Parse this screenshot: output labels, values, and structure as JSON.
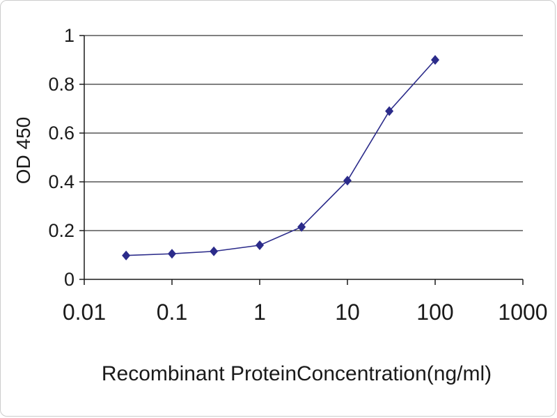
{
  "chart_data": {
    "type": "line",
    "title": "",
    "xlabel": "Recombinant ProteinConcentration(ng/ml)",
    "ylabel": "OD 450",
    "xscale": "log",
    "xlim": [
      0.01,
      1000
    ],
    "ylim": [
      0,
      1
    ],
    "xticks": [
      0.01,
      0.1,
      1,
      10,
      100,
      1000
    ],
    "xtick_labels": [
      "0.01",
      "0.1",
      "1",
      "10",
      "100",
      "1000"
    ],
    "yticks": [
      0,
      0.2,
      0.4,
      0.6,
      0.8,
      1
    ],
    "ytick_labels": [
      "0",
      "0.2",
      "0.4",
      "0.6",
      "0.8",
      "1"
    ],
    "grid": "horizontal",
    "legend": "none",
    "x": [
      0.03,
      0.1,
      0.3,
      1,
      3,
      10,
      30,
      100
    ],
    "series": [
      {
        "name": "OD 450",
        "values": [
          0.098,
          0.105,
          0.115,
          0.14,
          0.215,
          0.405,
          0.69,
          0.9
        ]
      }
    ],
    "line_color": "#2b2b8a",
    "marker": "diamond",
    "axis_color": "#1a1a1a",
    "grid_color": "#000000"
  }
}
